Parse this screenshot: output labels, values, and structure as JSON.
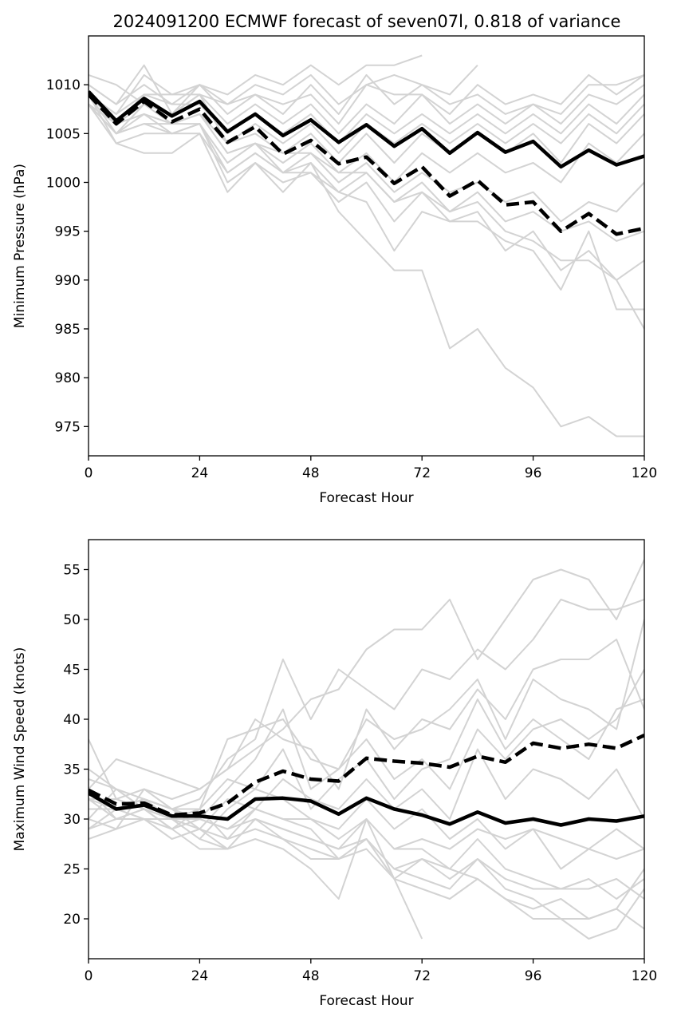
{
  "figure": {
    "title": "2024091200 ECMWF forecast of seven07l, 0.818 of variance"
  },
  "colors": {
    "member": "#d3d3d3",
    "mean": "#000000",
    "axes": "#000000"
  },
  "chart_data": [
    {
      "type": "line",
      "title": "2024091200 ECMWF forecast of seven07l, 0.818 of variance",
      "xlabel": "Forecast Hour",
      "ylabel": "Minimum Pressure (hPa)",
      "xlim": [
        0,
        120
      ],
      "ylim": [
        972,
        1015
      ],
      "xticks": [
        0,
        24,
        48,
        72,
        96,
        120
      ],
      "yticks": [
        975,
        980,
        985,
        990,
        995,
        1000,
        1005,
        1010
      ],
      "grid": false,
      "legend": "none",
      "x": [
        0,
        6,
        12,
        18,
        24,
        30,
        36,
        42,
        48,
        54,
        60,
        66,
        72,
        78,
        84,
        90,
        96,
        102,
        108,
        114,
        120
      ],
      "members": [
        [
          1011,
          1010,
          1008,
          1007,
          1010,
          1009,
          1011,
          1010,
          1012,
          1010,
          1012,
          1012,
          1013
        ],
        [
          1010,
          1008,
          1012,
          1007,
          1009,
          1008,
          1010,
          1009,
          1011,
          1008,
          1010,
          1011,
          1010,
          1009,
          1012
        ],
        [
          1009,
          1007,
          1011,
          1009,
          1010,
          1008,
          1009,
          1007,
          1010,
          1007,
          1011,
          1008,
          1010,
          1008,
          1009,
          1007,
          1008,
          1006,
          1009,
          1008,
          1010
        ],
        [
          1010,
          1008,
          1010,
          1008,
          1010,
          1007,
          1009,
          1008,
          1009,
          1006,
          1010,
          1009,
          1009,
          1007,
          1010,
          1008,
          1009,
          1008,
          1011,
          1009,
          1011
        ],
        [
          1009,
          1007,
          1009,
          1009,
          1009,
          1006,
          1008,
          1006,
          1008,
          1005,
          1008,
          1006,
          1009,
          1006,
          1008,
          1006,
          1008,
          1007,
          1010,
          1010,
          1011
        ],
        [
          1008,
          1006,
          1009,
          1008,
          1008,
          1005,
          1007,
          1005,
          1007,
          1004,
          1007,
          1005,
          1007,
          1005,
          1007,
          1005,
          1007,
          1005,
          1008,
          1006,
          1009
        ],
        [
          1009,
          1006,
          1008,
          1007,
          1009,
          1004,
          1006,
          1004,
          1006,
          1003,
          1006,
          1004,
          1006,
          1004,
          1006,
          1004,
          1006,
          1004,
          1007,
          1005,
          1008
        ],
        [
          1008,
          1006,
          1007,
          1006,
          1007,
          1004,
          1005,
          1003,
          1005,
          1002,
          1005,
          1002,
          1005,
          1003,
          1005,
          1003,
          1005,
          1002,
          1006,
          1004,
          1007
        ],
        [
          1008,
          1005,
          1006,
          1006,
          1007,
          1003,
          1004,
          1002,
          1004,
          1001,
          1003,
          1000,
          1003,
          1001,
          1003,
          1001,
          1002,
          1000,
          1004,
          1002,
          1005
        ],
        [
          1009,
          1005,
          1008,
          1006,
          1006,
          1002,
          1004,
          1001,
          1003,
          1000,
          1002,
          999,
          1001,
          999,
          1000,
          998,
          999,
          996,
          998,
          997,
          1000
        ],
        [
          1008,
          1005,
          1007,
          1005,
          1006,
          1001,
          1003,
          1001,
          1002,
          999,
          1001,
          998,
          1000,
          997,
          999,
          996,
          997,
          995,
          996,
          994,
          995
        ],
        [
          1009,
          1004,
          1005,
          1005,
          1006,
          1000,
          1002,
          1000,
          1001,
          998,
          1000,
          996,
          999,
          996,
          997,
          993,
          995,
          991,
          993,
          990,
          992
        ],
        [
          1008,
          1004,
          1003,
          1003,
          1005,
          999,
          1002,
          999,
          1002,
          997,
          994,
          991,
          991,
          983,
          985,
          981,
          979,
          975,
          976,
          974,
          974
        ],
        [
          1008,
          1005,
          1006,
          1005,
          1005,
          1001,
          1003,
          1001,
          1001,
          999,
          998,
          993,
          997,
          996,
          996,
          994,
          993,
          989,
          995,
          987,
          987
        ],
        [
          1009,
          1006,
          1007,
          1006,
          1007,
          1003,
          1004,
          1003,
          1003,
          1001,
          1001,
          998,
          999,
          997,
          998,
          995,
          994,
          992,
          992,
          990,
          985
        ]
      ],
      "series": [
        {
          "style": "solid",
          "values": [
            1009.3,
            1006.3,
            1008.6,
            1006.8,
            1008.3,
            1005.2,
            1007.0,
            1004.8,
            1006.4,
            1004.1,
            1005.9,
            1003.7,
            1005.5,
            1003.0,
            1005.1,
            1003.1,
            1004.2,
            1001.6,
            1003.3,
            1001.8,
            1002.7
          ]
        },
        {
          "style": "dashed",
          "values": [
            1009.0,
            1006.0,
            1008.3,
            1006.2,
            1007.5,
            1004.1,
            1005.7,
            1002.9,
            1004.3,
            1001.9,
            1002.6,
            999.9,
            1001.6,
            998.6,
            1000.2,
            997.7,
            998.0,
            995.0,
            996.8,
            994.7,
            995.3
          ]
        }
      ]
    },
    {
      "type": "line",
      "xlabel": "Forecast Hour",
      "ylabel": "Maximum Wind Speed (knots)",
      "xlim": [
        0,
        120
      ],
      "ylim": [
        16,
        58
      ],
      "xticks": [
        0,
        24,
        48,
        72,
        96,
        120
      ],
      "yticks": [
        20,
        25,
        30,
        35,
        40,
        45,
        50,
        55
      ],
      "grid": false,
      "legend": "none",
      "x": [
        0,
        6,
        12,
        18,
        24,
        30,
        36,
        42,
        48,
        54,
        60,
        66,
        72,
        78,
        84,
        90,
        96,
        102,
        108,
        114,
        120
      ],
      "members": [
        [
          32,
          32,
          33,
          32,
          33,
          35,
          37,
          39,
          42,
          43,
          47,
          49,
          49,
          52,
          46,
          50,
          54,
          55,
          54,
          50,
          56
        ],
        [
          30,
          33,
          32,
          31,
          32,
          36,
          38,
          46,
          40,
          45,
          43,
          41,
          45,
          44,
          47,
          45,
          48,
          52,
          51,
          51,
          52
        ],
        [
          33,
          36,
          35,
          34,
          33,
          35,
          40,
          38,
          37,
          33,
          41,
          37,
          40,
          39,
          43,
          40,
          45,
          46,
          46,
          48,
          41
        ],
        [
          29,
          31,
          32,
          30,
          31,
          38,
          39,
          40,
          36,
          35,
          40,
          38,
          39,
          41,
          44,
          38,
          44,
          42,
          41,
          39,
          50
        ],
        [
          31,
          31,
          30,
          30,
          30,
          33,
          36,
          41,
          33,
          35,
          38,
          34,
          36,
          33,
          39,
          36,
          39,
          40,
          38,
          40,
          45
        ],
        [
          34,
          33,
          31,
          29,
          31,
          34,
          33,
          37,
          31,
          34,
          36,
          32,
          35,
          36,
          42,
          37,
          40,
          38,
          36,
          41,
          42
        ],
        [
          30,
          29,
          33,
          31,
          29,
          32,
          31,
          34,
          32,
          31,
          34,
          31,
          33,
          30,
          37,
          32,
          35,
          34,
          32,
          35,
          30
        ],
        [
          32,
          30,
          31,
          30,
          28,
          31,
          33,
          32,
          30,
          29,
          32,
          29,
          31,
          28,
          30,
          27,
          29,
          28,
          27,
          29,
          27
        ],
        [
          29,
          30,
          30,
          28,
          29,
          27,
          30,
          29,
          28,
          27,
          30,
          27,
          27,
          25,
          28,
          25,
          24,
          23,
          23,
          24,
          22
        ],
        [
          31,
          31,
          32,
          31,
          30,
          29,
          31,
          30,
          29,
          26,
          28,
          25,
          26,
          24,
          26,
          23,
          22,
          20,
          20,
          21,
          19
        ],
        [
          28,
          29,
          30,
          29,
          27,
          27,
          28,
          27,
          25,
          22,
          30,
          24,
          26,
          25,
          24,
          22,
          20,
          20,
          18,
          19,
          23
        ],
        [
          33,
          30,
          31,
          30,
          28,
          27,
          30,
          28,
          27,
          26,
          27,
          24,
          18
        ],
        [
          32,
          31,
          32,
          31,
          31,
          28,
          29,
          28,
          26,
          26,
          28,
          24,
          23,
          22,
          24,
          22,
          21,
          22,
          20,
          21,
          25
        ],
        [
          35,
          33,
          31,
          29,
          30,
          29,
          30,
          29,
          28,
          27,
          28,
          25,
          24,
          23,
          26,
          24,
          23,
          23,
          24,
          22,
          24
        ],
        [
          38,
          32,
          31,
          30,
          29,
          28,
          31,
          30,
          30,
          28,
          30,
          27,
          28,
          27,
          29,
          28,
          29,
          25,
          27,
          26,
          27
        ]
      ],
      "series": [
        {
          "style": "solid",
          "values": [
            32.6,
            31.0,
            31.4,
            30.3,
            30.3,
            30.0,
            32.0,
            32.1,
            31.8,
            30.5,
            32.1,
            31.0,
            30.4,
            29.5,
            30.7,
            29.6,
            30.0,
            29.4,
            30.0,
            29.8,
            30.3
          ]
        },
        {
          "style": "dashed",
          "values": [
            32.9,
            31.5,
            31.6,
            30.4,
            30.6,
            31.6,
            33.7,
            34.8,
            34.0,
            33.8,
            36.1,
            35.8,
            35.6,
            35.2,
            36.3,
            35.7,
            37.6,
            37.1,
            37.5,
            37.1,
            38.4
          ]
        }
      ]
    }
  ]
}
